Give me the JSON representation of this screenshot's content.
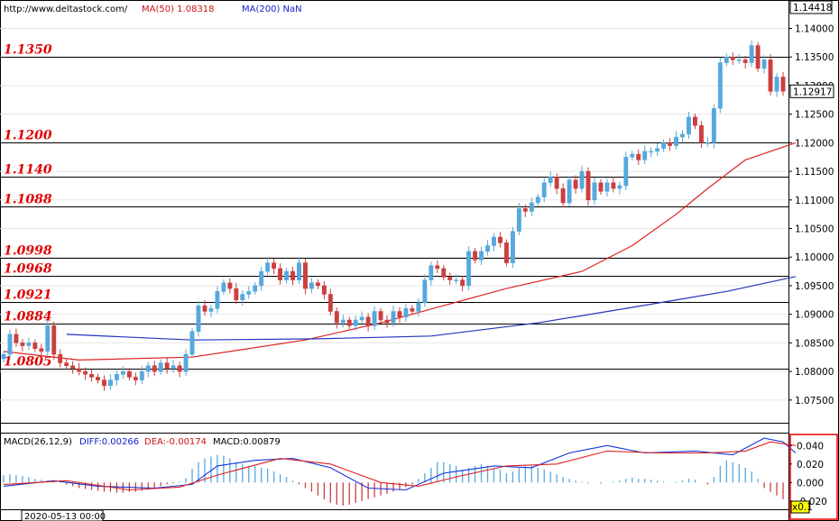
{
  "header": {
    "site": "http://www.deltastock.com/",
    "ma50": "MA(50)  1.08318",
    "ma200": "MA(200)  NaN"
  },
  "price_axis": {
    "top_label": "1.14418",
    "current_label": "1.12917",
    "ticks": [
      "1.14000",
      "1.13500",
      "1.13000",
      "1.12500",
      "1.12000",
      "1.11500",
      "1.11000",
      "1.10500",
      "1.10000",
      "1.09500",
      "1.09000",
      "1.08500",
      "1.08000",
      "1.07500"
    ]
  },
  "macd_panel": {
    "title": "MACD(26,12,9)",
    "diff": "DIFF:0.00266",
    "dea": "DEA:-0.00174",
    "macd": "MACD:0.00879",
    "ticks": [
      "0.040",
      "0.020",
      "0.000",
      "-0.020"
    ],
    "scale_label": "x0.1"
  },
  "time_label": "2020-05-13 00:00",
  "colors": {
    "bull": "#56a8dd",
    "bear": "#cc3f3f",
    "ma50": "#dd2222",
    "ma200": "#2233bb",
    "level_text": "#e00000",
    "macd_axis_border": "#ee0000"
  },
  "chart_data": {
    "type": "candlestick",
    "price_range": [
      1.0715,
      1.14418
    ],
    "levels": [
      {
        "label": "1.1350",
        "value": 1.135
      },
      {
        "label": "1.1200",
        "value": 1.12
      },
      {
        "label": "1.1140",
        "value": 1.114
      },
      {
        "label": "1.1088",
        "value": 1.1088
      },
      {
        "label": "1.0998",
        "value": 1.0998
      },
      {
        "label": "1.0968",
        "value": 1.0968
      },
      {
        "label": "1.0921",
        "value": 1.0921
      },
      {
        "label": "1.0884",
        "value": 1.0884
      },
      {
        "label": "1.0805",
        "value": 1.0805
      }
    ],
    "ohlc_close": [
      1.083,
      1.0865,
      1.085,
      1.0845,
      1.085,
      1.084,
      1.0835,
      1.088,
      1.083,
      1.0815,
      1.081,
      1.0805,
      1.08,
      1.0795,
      1.079,
      1.0785,
      1.0775,
      1.0785,
      1.0795,
      1.08,
      1.079,
      1.0785,
      1.08,
      1.081,
      1.08,
      1.0815,
      1.0805,
      1.081,
      1.08,
      1.083,
      1.087,
      1.0915,
      1.0905,
      1.091,
      1.094,
      1.0955,
      1.0945,
      1.0925,
      1.0935,
      1.094,
      1.095,
      1.0975,
      1.099,
      1.098,
      1.096,
      1.0975,
      1.096,
      1.099,
      1.0945,
      1.0955,
      1.095,
      1.0935,
      1.0905,
      1.0885,
      1.089,
      1.088,
      1.089,
      1.0895,
      1.088,
      1.0905,
      1.089,
      1.0885,
      1.0905,
      1.0895,
      1.091,
      1.0905,
      1.092,
      1.096,
      1.0985,
      1.098,
      1.0965,
      1.096,
      1.096,
      1.095,
      1.101,
      1.0995,
      1.101,
      1.102,
      1.1035,
      1.1025,
      1.099,
      1.1045,
      1.1085,
      1.108,
      1.1095,
      1.1105,
      1.113,
      1.114,
      1.112,
      1.1095,
      1.1135,
      1.112,
      1.115,
      1.11,
      1.113,
      1.1115,
      1.113,
      1.112,
      1.1125,
      1.1175,
      1.118,
      1.117,
      1.1185,
      1.1185,
      1.119,
      1.12,
      1.1195,
      1.121,
      1.1215,
      1.1245,
      1.123,
      1.12,
      1.12,
      1.126,
      1.134,
      1.135,
      1.1345,
      1.1345,
      1.134,
      1.137,
      1.133,
      1.1345,
      1.129,
      1.1315,
      1.129
    ],
    "ma50": [
      [
        0,
        1.0835
      ],
      [
        12,
        1.082
      ],
      [
        30,
        1.0825
      ],
      [
        48,
        1.0855
      ],
      [
        60,
        1.0885
      ],
      [
        70,
        1.0915
      ],
      [
        80,
        1.0945
      ],
      [
        92,
        1.0975
      ],
      [
        100,
        1.102
      ],
      [
        107,
        1.1075
      ],
      [
        112,
        1.112
      ],
      [
        118,
        1.117
      ],
      [
        126,
        1.12
      ]
    ],
    "ma200": [
      [
        10,
        1.0865
      ],
      [
        30,
        1.0855
      ],
      [
        50,
        1.0857
      ],
      [
        68,
        1.0862
      ],
      [
        85,
        1.0885
      ],
      [
        100,
        1.0912
      ],
      [
        115,
        1.094
      ],
      [
        126,
        1.0966
      ]
    ],
    "macd_range": [
      -0.028,
      0.052
    ],
    "macd_hist": [
      0.008,
      0.009,
      0.008,
      0.007,
      0.006,
      0.004,
      0.003,
      0.002,
      0.002,
      0.003,
      -0.002,
      -0.004,
      -0.006,
      -0.007,
      -0.008,
      -0.009,
      -0.01,
      -0.01,
      -0.011,
      -0.011,
      -0.01,
      -0.01,
      -0.009,
      -0.008,
      -0.006,
      -0.004,
      -0.002,
      -0.001,
      0.001,
      0.005,
      0.015,
      0.022,
      0.026,
      0.028,
      0.03,
      0.029,
      0.026,
      0.022,
      0.02,
      0.018,
      0.018,
      0.016,
      0.015,
      0.012,
      0.009,
      0.006,
      0.002,
      -0.002,
      -0.006,
      -0.01,
      -0.014,
      -0.018,
      -0.022,
      -0.024,
      -0.025,
      -0.024,
      -0.022,
      -0.02,
      -0.018,
      -0.016,
      -0.014,
      -0.012,
      -0.01,
      -0.008,
      -0.005,
      -0.002,
      0.004,
      0.01,
      0.016,
      0.022,
      0.022,
      0.02,
      0.018,
      0.014,
      0.016,
      0.018,
      0.02,
      0.018,
      0.016,
      0.014,
      0.01,
      0.012,
      0.016,
      0.018,
      0.018,
      0.016,
      0.014,
      0.012,
      0.009,
      0.006,
      0.004,
      0.002,
      0.001,
      -0.001,
      0.0,
      -0.001,
      0.0,
      0.001,
      0.002,
      0.004,
      0.005,
      0.004,
      0.004,
      0.003,
      0.002,
      0.001,
      0.0,
      0.001,
      0.002,
      0.004,
      0.003,
      0.0,
      -0.002,
      0.006,
      0.018,
      0.024,
      0.022,
      0.02,
      0.016,
      0.012,
      0.004,
      -0.006,
      -0.01,
      -0.014,
      -0.018
    ],
    "macd_diff": [
      [
        0,
        -0.004
      ],
      [
        8,
        0.002
      ],
      [
        15,
        -0.004
      ],
      [
        24,
        -0.006
      ],
      [
        30,
        -0.002
      ],
      [
        34,
        0.018
      ],
      [
        40,
        0.024
      ],
      [
        46,
        0.026
      ],
      [
        52,
        0.016
      ],
      [
        58,
        -0.006
      ],
      [
        64,
        -0.008
      ],
      [
        70,
        0.01
      ],
      [
        78,
        0.018
      ],
      [
        84,
        0.016
      ],
      [
        90,
        0.032
      ],
      [
        96,
        0.04
      ],
      [
        102,
        0.032
      ],
      [
        110,
        0.034
      ],
      [
        116,
        0.03
      ],
      [
        121,
        0.048
      ],
      [
        124,
        0.044
      ],
      [
        126,
        0.032
      ]
    ],
    "macd_dea": [
      [
        0,
        -0.002
      ],
      [
        10,
        0.002
      ],
      [
        20,
        -0.008
      ],
      [
        28,
        -0.005
      ],
      [
        34,
        0.008
      ],
      [
        44,
        0.026
      ],
      [
        52,
        0.02
      ],
      [
        60,
        0.0
      ],
      [
        66,
        -0.004
      ],
      [
        72,
        0.006
      ],
      [
        80,
        0.018
      ],
      [
        88,
        0.02
      ],
      [
        96,
        0.034
      ],
      [
        104,
        0.032
      ],
      [
        112,
        0.032
      ],
      [
        118,
        0.034
      ],
      [
        122,
        0.044
      ],
      [
        126,
        0.04
      ]
    ]
  }
}
